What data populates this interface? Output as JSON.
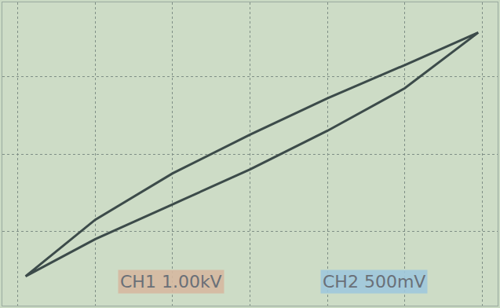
{
  "chart_data": {
    "type": "line",
    "x": [
      2.95,
      2,
      1,
      0,
      -1,
      -2,
      -2.9,
      -2,
      -1,
      0,
      1,
      2,
      2.95
    ],
    "values": [
      0.785,
      0.575,
      0.36,
      0.125,
      -0.125,
      -0.425,
      -0.79,
      -0.55,
      -0.325,
      -0.1,
      0.15,
      0.425,
      0.785
    ],
    "color": "#3c4b4a",
    "line_style": "solid",
    "xlim": [
      -3.2,
      3.2
    ],
    "ylim": [
      -0.98,
      0.98
    ],
    "xticks": [
      -3,
      -2,
      -1,
      0,
      1,
      2,
      3
    ],
    "yticks": [
      -0.5,
      0,
      0.5
    ],
    "grid": true,
    "tick_labels": false,
    "annotations": [
      "CH1 1.00kV",
      "CH2 500mV"
    ]
  }
}
